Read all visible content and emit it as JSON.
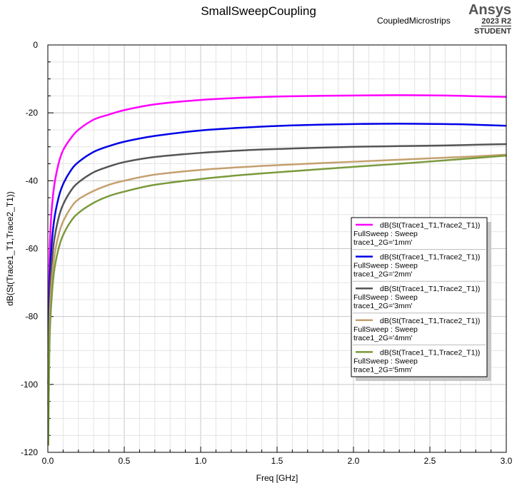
{
  "header": {
    "title": "SmallSweepCoupling",
    "project": "CoupledMicrostrips",
    "brand": "Ansys",
    "version": "2023 R2",
    "edition": "STUDENT"
  },
  "chart_data": {
    "type": "line",
    "title": "SmallSweepCoupling",
    "xlabel": "Freq [GHz]",
    "ylabel": "dB(St(Trace1_T1,Trace2_T1))",
    "xlim": [
      0,
      3
    ],
    "ylim": [
      -120,
      0
    ],
    "x_ticks": [
      0,
      0.5,
      1,
      1.5,
      2,
      2.5,
      3
    ],
    "x_tick_labels": [
      "0.0",
      "0.5",
      "1.0",
      "1.5",
      "2.0",
      "2.5",
      "3.0"
    ],
    "y_ticks": [
      0,
      -20,
      -40,
      -60,
      -80,
      -100,
      -120
    ],
    "y_tick_labels": [
      "0",
      "-20",
      "-40",
      "-60",
      "-80",
      "-100",
      "-120"
    ],
    "grid": true,
    "legend_position": "right",
    "series": [
      {
        "name": "dB(St(Trace1_T1,Trace2_T1))",
        "line2": "FullSweep : Sweep",
        "line3": "trace1_2G='1mm'",
        "color": "#ff00ff",
        "x": [
          0.003,
          0.01,
          0.02,
          0.04,
          0.07,
          0.1,
          0.15,
          0.2,
          0.3,
          0.4,
          0.5,
          0.7,
          1.0,
          1.3,
          1.6,
          2.0,
          2.3,
          2.6,
          2.8,
          3.0
        ],
        "y": [
          -92,
          -65,
          -52,
          -42,
          -35,
          -31,
          -27.5,
          -25,
          -22,
          -20.5,
          -19.2,
          -17.5,
          -16.2,
          -15.5,
          -15.1,
          -14.9,
          -14.8,
          -14.9,
          -15.1,
          -15.3
        ]
      },
      {
        "name": "dB(St(Trace1_T1,Trace2_T1))",
        "line2": "FullSweep : Sweep",
        "line3": "trace1_2G='2mm'",
        "color": "#0000e6",
        "x": [
          0.003,
          0.01,
          0.02,
          0.04,
          0.07,
          0.1,
          0.15,
          0.2,
          0.3,
          0.4,
          0.5,
          0.7,
          1.0,
          1.3,
          1.6,
          2.0,
          2.3,
          2.6,
          2.8,
          3.0
        ],
        "y": [
          -100,
          -74,
          -62,
          -52,
          -45,
          -41,
          -37,
          -34.5,
          -31.5,
          -29.8,
          -28.5,
          -26.8,
          -25.2,
          -24.3,
          -23.7,
          -23.3,
          -23.2,
          -23.3,
          -23.5,
          -23.8
        ]
      },
      {
        "name": "dB(St(Trace1_T1,Trace2_T1))",
        "line2": "FullSweep : Sweep",
        "line3": "trace1_2G='3mm'",
        "color": "#555555",
        "x": [
          0.003,
          0.01,
          0.02,
          0.04,
          0.07,
          0.1,
          0.15,
          0.2,
          0.3,
          0.4,
          0.5,
          0.7,
          1.0,
          1.3,
          1.6,
          2.0,
          2.3,
          2.6,
          2.8,
          3.0
        ],
        "y": [
          -106,
          -80,
          -68,
          -58,
          -51,
          -47,
          -43,
          -40.5,
          -37.5,
          -35.8,
          -34.5,
          -33,
          -31.8,
          -31,
          -30.5,
          -30,
          -29.8,
          -29.6,
          -29.4,
          -29.2
        ]
      },
      {
        "name": "dB(St(Trace1_T1,Trace2_T1))",
        "line2": "FullSweep : Sweep",
        "line3": "trace1_2G='4mm'",
        "color": "#c4a06f",
        "x": [
          0.003,
          0.01,
          0.02,
          0.04,
          0.07,
          0.1,
          0.15,
          0.2,
          0.3,
          0.4,
          0.5,
          0.7,
          1.0,
          1.3,
          1.6,
          2.0,
          2.3,
          2.6,
          2.8,
          3.0
        ],
        "y": [
          -112,
          -85,
          -73,
          -63,
          -56,
          -52,
          -48,
          -45.5,
          -43,
          -41.2,
          -40,
          -38.2,
          -36.8,
          -35.9,
          -35.2,
          -34.4,
          -33.8,
          -33.2,
          -32.8,
          -32.3
        ]
      },
      {
        "name": "dB(St(Trace1_T1,Trace2_T1))",
        "line2": "FullSweep : Sweep",
        "line3": "trace1_2G='5mm'",
        "color": "#7a9a3c",
        "x": [
          0.003,
          0.01,
          0.02,
          0.04,
          0.07,
          0.1,
          0.15,
          0.2,
          0.3,
          0.4,
          0.5,
          0.7,
          1.0,
          1.3,
          1.6,
          2.0,
          2.3,
          2.6,
          2.8,
          3.0
        ],
        "y": [
          -118,
          -90,
          -78,
          -67,
          -60,
          -56,
          -52,
          -49.5,
          -46.5,
          -44.5,
          -43.2,
          -41.2,
          -39.5,
          -38.2,
          -37.2,
          -35.9,
          -35,
          -34,
          -33.3,
          -32.6
        ]
      }
    ]
  }
}
